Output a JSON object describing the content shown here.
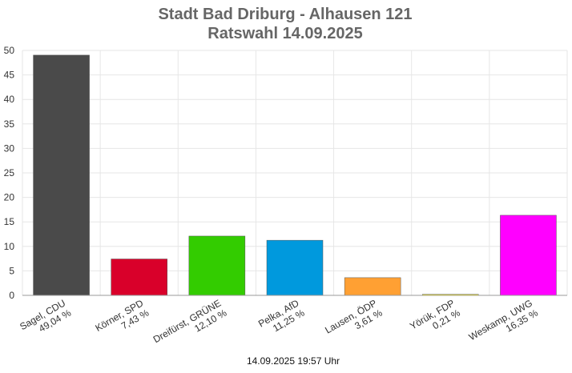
{
  "chart_data": {
    "type": "bar",
    "title": "Stadt Bad Driburg - Alhausen 121",
    "subtitle": "Ratswahl 14.09.2025",
    "categories": [
      {
        "name": "Sagel, CDU",
        "pct_label": "49,04 %"
      },
      {
        "name": "Körner, SPD",
        "pct_label": "7,43 %"
      },
      {
        "name": "Dreifürst, GRÜNE",
        "pct_label": "12,10 %"
      },
      {
        "name": "Pelka, AfD",
        "pct_label": "11,25 %"
      },
      {
        "name": "Lausen, ÖDP",
        "pct_label": "3,61 %"
      },
      {
        "name": "Yörük, FDP",
        "pct_label": "0,21 %"
      },
      {
        "name": "Weskamp, UWG",
        "pct_label": "16,35 %"
      }
    ],
    "values": [
      49.04,
      7.43,
      12.1,
      11.25,
      3.61,
      0.21,
      16.35
    ],
    "colors": [
      "#4a4a4a",
      "#d9002a",
      "#33cc00",
      "#0099dd",
      "#ffa033",
      "#ffee00",
      "#ff00ff"
    ],
    "ylim": [
      0,
      50
    ],
    "yticks": [
      0,
      5,
      10,
      15,
      20,
      25,
      30,
      35,
      40,
      45,
      50
    ],
    "grid": true,
    "footer": "14.09.2025 19:57 Uhr"
  }
}
